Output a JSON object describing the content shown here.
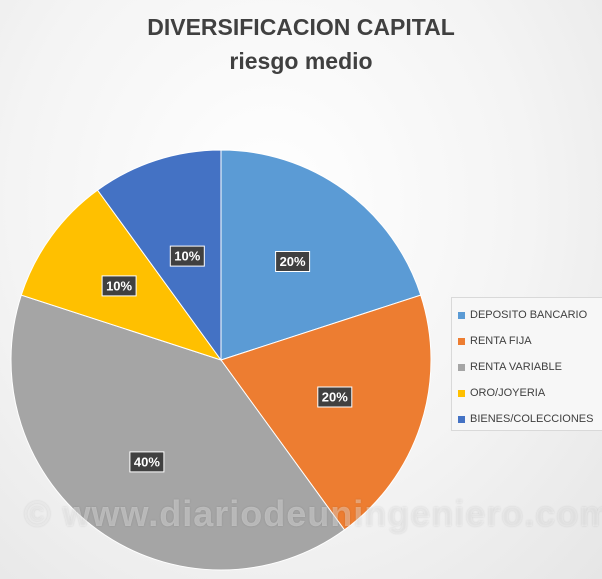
{
  "chart_data": {
    "type": "pie",
    "title": "DIVERSIFICACION CAPITAL",
    "subtitle": "riesgo medio",
    "categories": [
      "DEPOSITO BANCARIO",
      "RENTA FIJA",
      "RENTA VARIABLE",
      "ORO/JOYERIA",
      "BIENES/COLECCIONES"
    ],
    "values": [
      20,
      20,
      40,
      10,
      10
    ],
    "data_labels": [
      "20%",
      "20%",
      "40%",
      "10%",
      "10%"
    ],
    "colors": [
      "#5B9BD5",
      "#ED7D31",
      "#A5A5A5",
      "#FFC000",
      "#4472C4"
    ],
    "legend_position": "right"
  },
  "watermark": "© www.diariodeuningeniero.com"
}
